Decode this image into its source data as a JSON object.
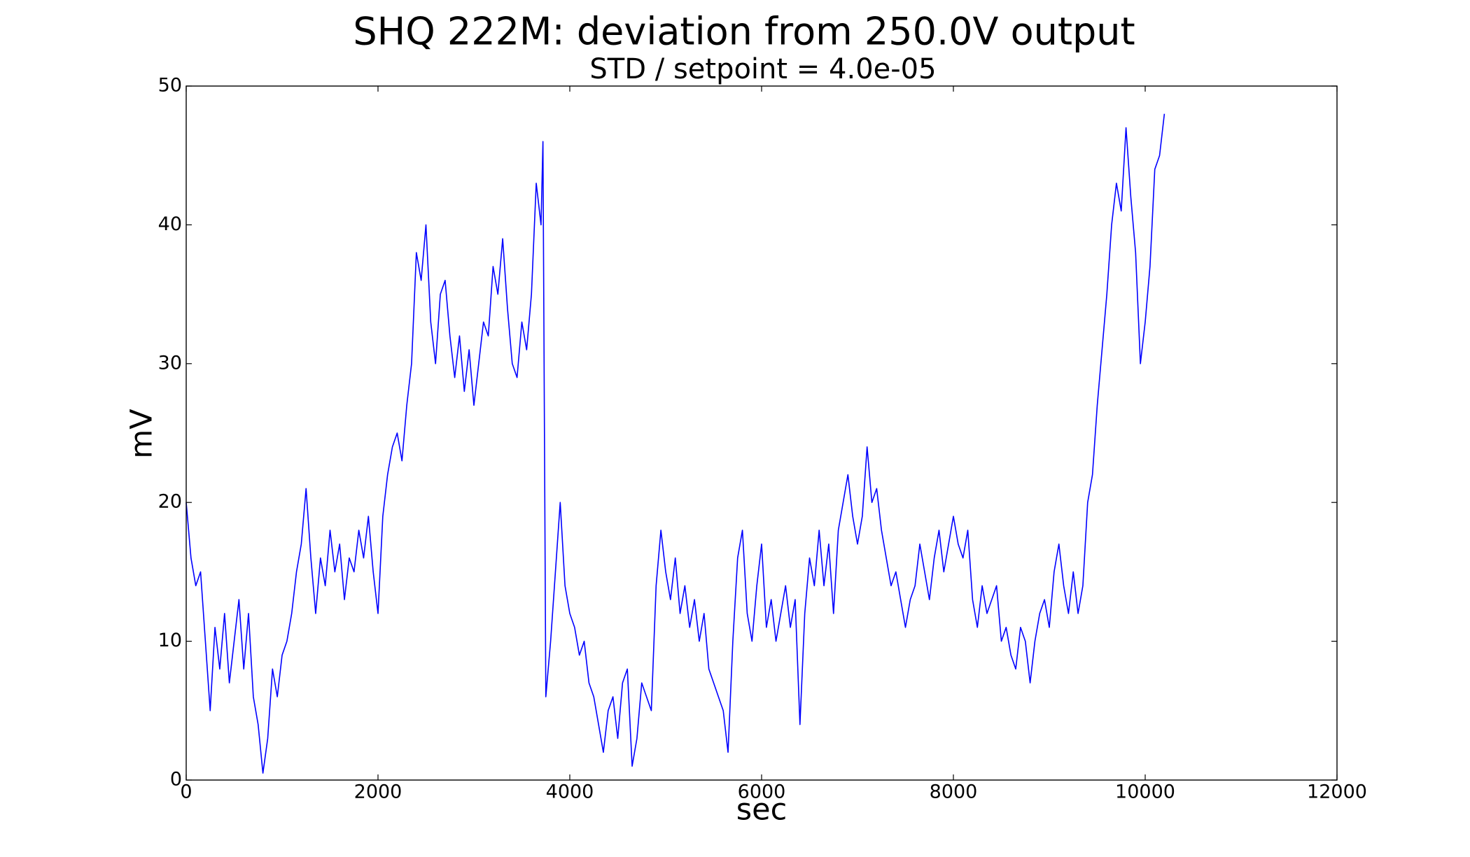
{
  "chart_data": {
    "type": "line",
    "title": "SHQ 222M: deviation from 250.0V output",
    "subtitle": "STD / setpoint = 4.0e-05",
    "x_label": "sec",
    "y_label": "mV",
    "color": "#0000ff",
    "xlim": [
      0,
      12000
    ],
    "xticks": [
      0,
      2000,
      4000,
      6000,
      8000,
      10000,
      12000
    ],
    "ylim": [
      0,
      50
    ],
    "yticks": [
      0,
      10,
      20,
      30,
      40,
      50
    ],
    "grid": false,
    "x": [
      0,
      50,
      100,
      150,
      200,
      250,
      300,
      350,
      400,
      450,
      500,
      550,
      600,
      650,
      700,
      750,
      800,
      850,
      900,
      950,
      1000,
      1050,
      1100,
      1150,
      1200,
      1250,
      1300,
      1350,
      1400,
      1450,
      1500,
      1550,
      1600,
      1650,
      1700,
      1750,
      1800,
      1850,
      1900,
      1950,
      2000,
      2050,
      2100,
      2150,
      2200,
      2250,
      2300,
      2350,
      2400,
      2450,
      2500,
      2550,
      2600,
      2650,
      2700,
      2750,
      2800,
      2850,
      2900,
      2950,
      3000,
      3050,
      3100,
      3150,
      3200,
      3250,
      3300,
      3350,
      3400,
      3450,
      3500,
      3550,
      3600,
      3650,
      3700,
      3720,
      3750,
      3800,
      3850,
      3900,
      3950,
      4000,
      4050,
      4100,
      4150,
      4200,
      4250,
      4300,
      4350,
      4400,
      4450,
      4500,
      4550,
      4600,
      4650,
      4700,
      4750,
      4800,
      4850,
      4900,
      4950,
      5000,
      5050,
      5100,
      5150,
      5200,
      5250,
      5300,
      5350,
      5400,
      5450,
      5500,
      5550,
      5600,
      5650,
      5700,
      5750,
      5800,
      5850,
      5900,
      5950,
      6000,
      6050,
      6100,
      6150,
      6200,
      6250,
      6300,
      6350,
      6400,
      6450,
      6500,
      6550,
      6600,
      6650,
      6700,
      6750,
      6800,
      6850,
      6900,
      6950,
      7000,
      7050,
      7100,
      7150,
      7200,
      7250,
      7300,
      7350,
      7400,
      7450,
      7500,
      7550,
      7600,
      7650,
      7700,
      7750,
      7800,
      7850,
      7900,
      7950,
      8000,
      8050,
      8100,
      8150,
      8200,
      8250,
      8300,
      8350,
      8400,
      8450,
      8500,
      8550,
      8600,
      8650,
      8700,
      8750,
      8800,
      8850,
      8900,
      8950,
      9000,
      9050,
      9100,
      9150,
      9200,
      9250,
      9300,
      9350,
      9400,
      9450,
      9500,
      9550,
      9600,
      9650,
      9700,
      9750,
      9800,
      9850,
      9900,
      9950,
      10000,
      10050,
      10100,
      10150,
      10200
    ],
    "values": [
      20,
      16,
      14,
      15,
      10,
      5,
      11,
      8,
      12,
      7,
      10,
      13,
      8,
      12,
      6,
      4,
      0.5,
      3,
      8,
      6,
      9,
      10,
      12,
      15,
      17,
      21,
      16,
      12,
      16,
      14,
      18,
      15,
      17,
      13,
      16,
      15,
      18,
      16,
      19,
      15,
      12,
      19,
      22,
      24,
      25,
      23,
      27,
      30,
      38,
      36,
      40,
      33,
      30,
      35,
      36,
      32,
      29,
      32,
      28,
      31,
      27,
      30,
      33,
      32,
      37,
      35,
      39,
      34,
      30,
      29,
      33,
      31,
      35,
      43,
      40,
      46,
      6,
      10,
      15,
      20,
      14,
      12,
      11,
      9,
      10,
      7,
      6,
      4,
      2,
      5,
      6,
      3,
      7,
      8,
      1,
      3,
      7,
      6,
      5,
      14,
      18,
      15,
      13,
      16,
      12,
      14,
      11,
      13,
      10,
      12,
      8,
      7,
      6,
      5,
      2,
      10,
      16,
      18,
      12,
      10,
      14,
      17,
      11,
      13,
      10,
      12,
      14,
      11,
      13,
      4,
      12,
      16,
      14,
      18,
      14,
      17,
      12,
      18,
      20,
      22,
      19,
      17,
      19,
      24,
      20,
      21,
      18,
      16,
      14,
      15,
      13,
      11,
      13,
      14,
      17,
      15,
      13,
      16,
      18,
      15,
      17,
      19,
      17,
      16,
      18,
      13,
      11,
      14,
      12,
      13,
      14,
      10,
      11,
      9,
      8,
      11,
      10,
      7,
      10,
      12,
      13,
      11,
      15,
      17,
      14,
      12,
      15,
      12,
      14,
      20,
      22,
      27,
      31,
      35,
      40,
      43,
      41,
      47,
      42,
      38,
      30,
      33,
      37,
      44,
      45,
      48
    ]
  }
}
